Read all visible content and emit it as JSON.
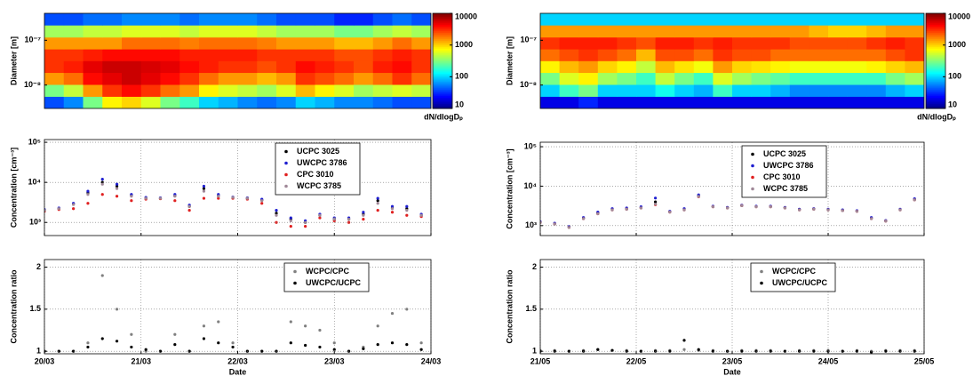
{
  "chart_data": [
    {
      "type": "heatmap",
      "ylabel": "Diameter [m]",
      "yscale": "log",
      "grid": false,
      "xlim": [
        20,
        24
      ],
      "ylim": [
        3e-09,
        4e-07
      ],
      "yticks": [
        {
          "value": 1e-08,
          "label": "10⁻⁸"
        },
        {
          "value": 1e-07,
          "label": "10⁻⁷"
        }
      ],
      "x": [
        20.1,
        20.3,
        20.5,
        20.7,
        20.9,
        21.1,
        21.3,
        21.5,
        21.7,
        21.9,
        22.1,
        22.3,
        22.5,
        22.7,
        22.9,
        23.1,
        23.3,
        23.5,
        23.7,
        23.9
      ],
      "y": [
        4.1e-09,
        7.6e-09,
        1.4e-08,
        2.6e-08,
        4.7e-08,
        8.7e-08,
        1.6e-07,
        3e-07
      ],
      "values": [
        [
          40,
          60,
          300,
          800,
          1000,
          600,
          300,
          200,
          100,
          80,
          60,
          50,
          60,
          100,
          80,
          60,
          60,
          50,
          40,
          40
        ],
        [
          300,
          500,
          1500,
          3000,
          4000,
          3000,
          2000,
          1500,
          800,
          600,
          500,
          400,
          600,
          1200,
          800,
          600,
          400,
          500,
          600,
          500
        ],
        [
          1500,
          2000,
          4000,
          5000,
          6000,
          5000,
          4000,
          3000,
          2000,
          1500,
          1500,
          1200,
          1500,
          3000,
          2500,
          2000,
          1500,
          2000,
          3000,
          2000
        ],
        [
          3000,
          3500,
          5000,
          6000,
          6000,
          5500,
          5000,
          4000,
          3500,
          3000,
          3000,
          2500,
          3000,
          4000,
          3500,
          3000,
          2500,
          3500,
          4000,
          3000
        ],
        [
          3000,
          3000,
          3500,
          4000,
          4000,
          4000,
          4000,
          3500,
          3500,
          3500,
          3500,
          3000,
          3000,
          3000,
          3000,
          2500,
          2500,
          3000,
          3500,
          3000
        ],
        [
          1500,
          1500,
          1500,
          1500,
          2000,
          2000,
          2000,
          1800,
          2000,
          2000,
          2000,
          1800,
          1500,
          1500,
          1500,
          1200,
          1200,
          1500,
          2000,
          1500
        ],
        [
          400,
          400,
          500,
          500,
          600,
          600,
          600,
          500,
          600,
          600,
          600,
          500,
          400,
          400,
          400,
          300,
          300,
          400,
          500,
          400
        ],
        [
          40,
          40,
          50,
          50,
          60,
          60,
          60,
          50,
          60,
          60,
          60,
          50,
          40,
          40,
          40,
          30,
          30,
          40,
          50,
          40
        ]
      ],
      "colorbar": {
        "lim": [
          10,
          10000
        ],
        "ticks": [
          10,
          100,
          1000,
          10000
        ],
        "label": "dN/dlogDₚ"
      }
    },
    {
      "type": "scatter",
      "ylabel": "Concentration [cm⁻³]",
      "yscale": "log",
      "grid": true,
      "legend": "upper right",
      "xticklabels": false,
      "xlim": [
        20,
        24
      ],
      "ylim": [
        470,
        117000
      ],
      "xticks": [
        20,
        21,
        22,
        23,
        24
      ],
      "yticks": [
        {
          "value": 1000,
          "label": "10³"
        },
        {
          "value": 10000,
          "label": "10⁴"
        },
        {
          "value": 100000,
          "label": "10⁵"
        }
      ],
      "x": [
        20.0,
        20.15,
        20.3,
        20.45,
        20.6,
        20.75,
        20.9,
        21.05,
        21.2,
        21.35,
        21.5,
        21.65,
        21.8,
        21.95,
        22.1,
        22.25,
        22.4,
        22.55,
        22.7,
        22.85,
        23.0,
        23.15,
        23.3,
        23.45,
        23.6,
        23.75,
        23.9
      ],
      "series": [
        {
          "name": "UCPC 3025",
          "color": "#000000",
          "values": [
            2000,
            2200,
            2900,
            5500,
            10000,
            8000,
            4800,
            4000,
            4000,
            4600,
            2500,
            7000,
            4600,
            4200,
            4000,
            3600,
            1700,
            1200,
            1000,
            1500,
            1200,
            1200,
            1600,
            3500,
            2300,
            2200,
            1500
          ]
        },
        {
          "name": "UWCPC 3786",
          "color": "#1f1fd0",
          "values": [
            2100,
            2300,
            3000,
            6000,
            12000,
            9000,
            5000,
            4200,
            4100,
            5000,
            2700,
            8000,
            5000,
            4300,
            4100,
            3800,
            2000,
            1300,
            1100,
            1600,
            1300,
            1300,
            1800,
            4000,
            2500,
            2500,
            1600
          ]
        },
        {
          "name": "CPC 3010",
          "color": "#e02020",
          "values": [
            1900,
            2100,
            2200,
            3000,
            5000,
            4500,
            3500,
            3800,
            3900,
            3500,
            2000,
            4000,
            4000,
            4000,
            3800,
            3000,
            1000,
            800,
            800,
            1300,
            1100,
            1000,
            1200,
            2000,
            1800,
            1500,
            1400
          ]
        },
        {
          "name": "WCPC 3785",
          "color": "#a08898",
          "values": [
            2000,
            2200,
            2800,
            5000,
            9000,
            7000,
            4500,
            4000,
            4000,
            4500,
            2500,
            6000,
            4500,
            4200,
            4000,
            3500,
            1500,
            1100,
            1000,
            1500,
            1200,
            1200,
            1500,
            3000,
            2200,
            2000,
            1500
          ]
        }
      ]
    },
    {
      "type": "scatter",
      "ylabel": "Concentration ratio",
      "xlabel": "Date",
      "grid": true,
      "legend": "upper right",
      "xlim": [
        20,
        24
      ],
      "ylim": [
        0.97,
        2.09
      ],
      "xticks": [
        {
          "value": 20,
          "label": "20/03"
        },
        {
          "value": 21,
          "label": "21/03"
        },
        {
          "value": 22,
          "label": "22/03"
        },
        {
          "value": 23,
          "label": "23/03"
        },
        {
          "value": 24,
          "label": "24/03"
        }
      ],
      "yticks": [
        1,
        1.5,
        2
      ],
      "x": [
        20.0,
        20.15,
        20.3,
        20.45,
        20.6,
        20.75,
        20.9,
        21.05,
        21.2,
        21.35,
        21.5,
        21.65,
        21.8,
        21.95,
        22.1,
        22.25,
        22.4,
        22.55,
        22.7,
        22.85,
        23.0,
        23.15,
        23.3,
        23.45,
        23.6,
        23.75,
        23.9
      ],
      "series": [
        {
          "name": "WCPC/CPC",
          "color": "#808080",
          "values": [
            1.0,
            1.0,
            1.0,
            1.1,
            1.9,
            1.5,
            1.2,
            1.0,
            1.0,
            1.2,
            1.0,
            1.3,
            1.35,
            1.1,
            1.0,
            1.0,
            1.0,
            1.35,
            1.3,
            1.25,
            1.1,
            1.0,
            1.05,
            1.3,
            1.45,
            1.5,
            1.1
          ]
        },
        {
          "name": "UWCPC/UCPC",
          "color": "#000000",
          "values": [
            1.0,
            1.0,
            1.0,
            1.05,
            1.15,
            1.12,
            1.05,
            1.02,
            1.0,
            1.08,
            1.0,
            1.15,
            1.1,
            1.05,
            1.0,
            1.0,
            1.0,
            1.1,
            1.07,
            1.05,
            1.02,
            1.0,
            1.03,
            1.08,
            1.1,
            1.08,
            1.02
          ]
        }
      ]
    },
    {
      "type": "heatmap",
      "ylabel": "Diameter [m]",
      "yscale": "log",
      "grid": false,
      "xlim": [
        21,
        25
      ],
      "ylim": [
        3e-09,
        4e-07
      ],
      "yticks": [
        {
          "value": 1e-08,
          "label": "10⁻⁸"
        },
        {
          "value": 1e-07,
          "label": "10⁻⁷"
        }
      ],
      "x": [
        21.1,
        21.3,
        21.5,
        21.7,
        21.9,
        22.1,
        22.3,
        22.5,
        22.7,
        22.9,
        23.1,
        23.3,
        23.5,
        23.7,
        23.9,
        24.1,
        24.3,
        24.5,
        24.7,
        24.9
      ],
      "y": [
        4.1e-09,
        7.6e-09,
        1.4e-08,
        2.6e-08,
        4.7e-08,
        8.7e-08,
        1.6e-07,
        3e-07
      ],
      "values": [
        [
          20,
          20,
          30,
          20,
          20,
          20,
          20,
          20,
          20,
          20,
          20,
          20,
          20,
          20,
          20,
          20,
          20,
          20,
          20,
          20
        ],
        [
          100,
          200,
          300,
          100,
          100,
          100,
          150,
          100,
          80,
          200,
          100,
          100,
          80,
          60,
          60,
          60,
          60,
          60,
          80,
          100
        ],
        [
          300,
          600,
          800,
          400,
          300,
          200,
          500,
          300,
          200,
          600,
          400,
          300,
          250,
          200,
          200,
          200,
          200,
          200,
          300,
          400
        ],
        [
          800,
          1200,
          1500,
          1000,
          800,
          500,
          1200,
          900,
          700,
          1500,
          1000,
          900,
          800,
          700,
          700,
          700,
          700,
          800,
          1000,
          1200
        ],
        [
          2000,
          2500,
          3000,
          2500,
          2000,
          1200,
          2500,
          2500,
          2000,
          3000,
          2500,
          2500,
          2000,
          2000,
          2000,
          2000,
          2000,
          2000,
          2500,
          3000
        ],
        [
          3000,
          3500,
          3500,
          3500,
          3000,
          2500,
          3500,
          3500,
          3000,
          3500,
          3000,
          3000,
          3000,
          2500,
          2500,
          2500,
          2500,
          3000,
          3500,
          3000
        ],
        [
          1500,
          1500,
          1500,
          1500,
          1500,
          1500,
          1500,
          1500,
          1500,
          1500,
          1500,
          1500,
          1500,
          1500,
          1200,
          1000,
          1000,
          1200,
          1500,
          1500
        ],
        [
          100,
          100,
          100,
          100,
          100,
          100,
          100,
          100,
          100,
          100,
          100,
          100,
          100,
          100,
          100,
          100,
          100,
          100,
          100,
          100
        ]
      ],
      "colorbar": {
        "lim": [
          10,
          10000
        ],
        "ticks": [
          10,
          100,
          1000,
          10000
        ],
        "label": "dN/dlogDₚ"
      }
    },
    {
      "type": "scatter",
      "ylabel": "Concentration [cm⁻³]",
      "yscale": "log",
      "grid": true,
      "legend": "upper right",
      "xticklabels": false,
      "xlim": [
        21,
        25
      ],
      "ylim": [
        560,
        130000
      ],
      "xticks": [
        21,
        22,
        23,
        24,
        25
      ],
      "yticks": [
        {
          "value": 1000,
          "label": "10³"
        },
        {
          "value": 10000,
          "label": "10⁴"
        },
        {
          "value": 100000,
          "label": "10⁵"
        }
      ],
      "x": [
        21.0,
        21.15,
        21.3,
        21.45,
        21.6,
        21.75,
        21.9,
        22.05,
        22.2,
        22.35,
        22.5,
        22.65,
        22.8,
        22.95,
        23.1,
        23.25,
        23.4,
        23.55,
        23.7,
        23.85,
        24.0,
        24.15,
        24.3,
        24.45,
        24.6,
        24.75,
        24.9
      ],
      "series": [
        {
          "name": "UCPC 3025",
          "color": "#000000",
          "values": [
            1230,
            1120,
            920,
            1550,
            2100,
            2550,
            2650,
            2850,
            4000,
            2250,
            2550,
            5700,
            3050,
            2850,
            3250,
            3050,
            3050,
            2850,
            2550,
            2650,
            2550,
            2450,
            2350,
            1550,
            1320,
            2550,
            4600
          ]
        },
        {
          "name": "UWCPC 3786",
          "color": "#1f1fd0",
          "values": [
            1250,
            1150,
            950,
            1600,
            2200,
            2700,
            2800,
            3000,
            5000,
            2300,
            2700,
            6000,
            3100,
            2900,
            3300,
            3100,
            3100,
            2900,
            2600,
            2700,
            2600,
            2500,
            2400,
            1600,
            1350,
            2600,
            4800
          ]
        },
        {
          "name": "CPC 3010",
          "color": "#e02020",
          "values": [
            1200,
            1100,
            900,
            1500,
            2000,
            2500,
            2600,
            2800,
            3400,
            2200,
            2500,
            5400,
            3000,
            2800,
            3200,
            3000,
            3000,
            2800,
            2500,
            2600,
            2500,
            2400,
            2300,
            1500,
            1300,
            2500,
            4500
          ]
        },
        {
          "name": "WCPC 3785",
          "color": "#a08898",
          "values": [
            1200,
            1100,
            900,
            1500,
            2000,
            2500,
            2600,
            2800,
            3500,
            2200,
            2500,
            5500,
            3000,
            2800,
            3200,
            3000,
            3000,
            2800,
            2500,
            2600,
            2500,
            2400,
            2300,
            1500,
            1300,
            2500,
            4500
          ]
        }
      ]
    },
    {
      "type": "scatter",
      "ylabel": "Concentration ratio",
      "xlabel": "Date",
      "grid": true,
      "legend": "upper right",
      "xlim": [
        21,
        25
      ],
      "ylim": [
        0.97,
        2.09
      ],
      "xticks": [
        {
          "value": 21,
          "label": "21/05"
        },
        {
          "value": 22,
          "label": "22/05"
        },
        {
          "value": 23,
          "label": "23/05"
        },
        {
          "value": 24,
          "label": "24/05"
        },
        {
          "value": 25,
          "label": "25/05"
        }
      ],
      "yticks": [
        1,
        1.5,
        2
      ],
      "x": [
        21.0,
        21.15,
        21.3,
        21.45,
        21.6,
        21.75,
        21.9,
        22.05,
        22.2,
        22.35,
        22.5,
        22.65,
        22.8,
        22.95,
        23.1,
        23.25,
        23.4,
        23.55,
        23.7,
        23.85,
        24.0,
        24.15,
        24.3,
        24.45,
        24.6,
        24.75,
        24.9
      ],
      "series": [
        {
          "name": "WCPC/CPC",
          "color": "#808080",
          "values": [
            1.01,
            1.01,
            1.0,
            1.01,
            1.02,
            1.01,
            1.01,
            1.0,
            1.01,
            1.01,
            1.02,
            1.01,
            1.01,
            1.0,
            1.01,
            1.01,
            1.01,
            1.0,
            1.01,
            1.01,
            1.01,
            1.0,
            1.01,
            1.0,
            1.01,
            1.01,
            1.01
          ]
        },
        {
          "name": "UWCPC/UCPC",
          "color": "#000000",
          "values": [
            1.0,
            1.0,
            1.0,
            1.0,
            1.02,
            1.01,
            1.0,
            1.0,
            1.0,
            1.0,
            1.13,
            1.02,
            1.0,
            1.0,
            1.0,
            1.0,
            1.0,
            1.0,
            1.0,
            1.0,
            1.0,
            1.0,
            1.0,
            0.99,
            1.0,
            1.0,
            1.0
          ]
        }
      ]
    }
  ]
}
